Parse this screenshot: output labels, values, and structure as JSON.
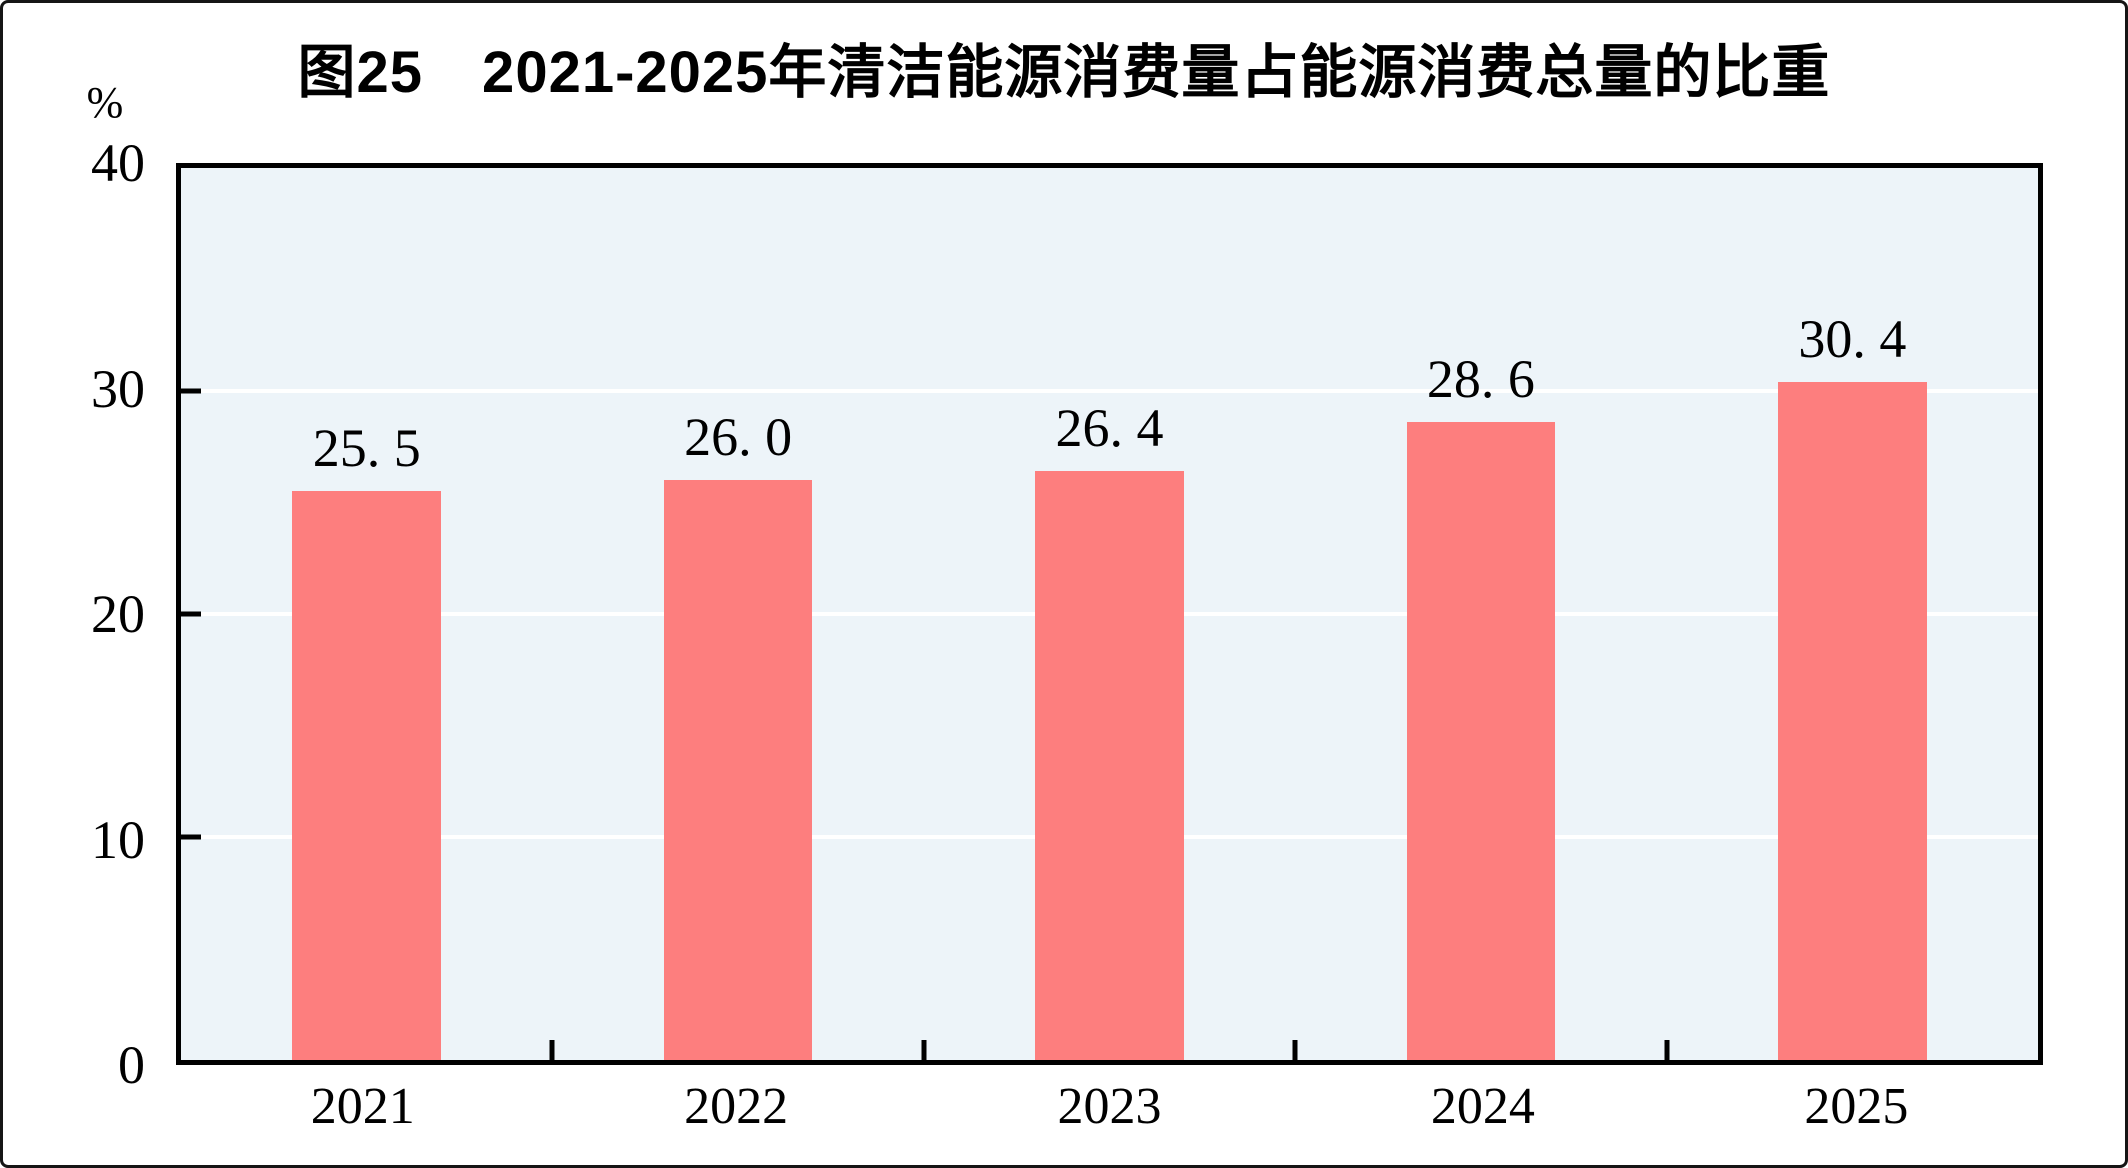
{
  "chart_data": {
    "type": "bar",
    "title": "图25　2021-2025年清洁能源消费量占能源消费总量的比重",
    "unit_label": "%",
    "categories": [
      "2021",
      "2022",
      "2023",
      "2024",
      "2025"
    ],
    "values": [
      25.5,
      26.0,
      26.4,
      28.6,
      30.4
    ],
    "bar_labels": [
      "25. 5",
      "26. 0",
      "26. 4",
      "28. 6",
      "30. 4"
    ],
    "ylabel": "%",
    "xlabel": "",
    "ylim": [
      0,
      40
    ],
    "ytick_labels": [
      "0",
      "10",
      "20",
      "30",
      "40"
    ],
    "ytick_values": [
      0,
      10,
      20,
      30,
      40
    ],
    "gridline_values": [
      10,
      20,
      30
    ],
    "grid": "horizontal",
    "legend": "none",
    "colors": {
      "bar": "#FD7E7E",
      "plot_bg": "#EDF4F9",
      "gridline": "#FFFFFF",
      "axis": "#000000",
      "text": "#000000"
    }
  }
}
